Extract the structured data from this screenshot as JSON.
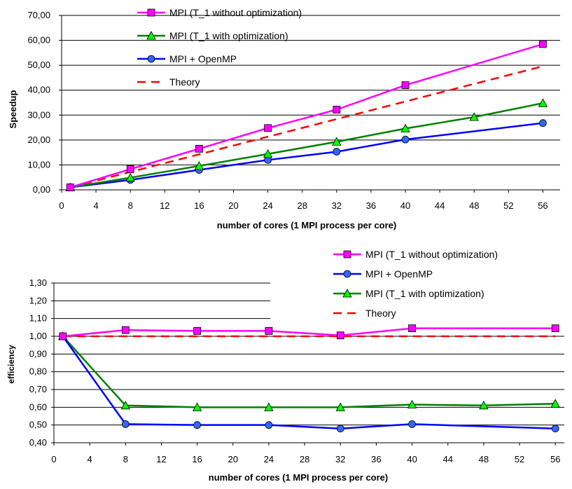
{
  "chart_data": [
    {
      "type": "line",
      "title": "",
      "xlabel": "number of cores (1 MPI process per core)",
      "ylabel": "Speedup",
      "xlim": [
        0,
        58
      ],
      "ylim": [
        0,
        70
      ],
      "x_ticks": [
        "0",
        "4",
        "8",
        "12",
        "16",
        "20",
        "24",
        "28",
        "32",
        "36",
        "40",
        "44",
        "48",
        "52",
        "56"
      ],
      "y_ticks": [
        "0,00",
        "10,00",
        "20,00",
        "30,00",
        "40,00",
        "50,00",
        "60,00",
        "70,00"
      ],
      "grid": true,
      "legend_position": "top-center",
      "series": [
        {
          "name": "MPI (T_1 without optimization)",
          "color": "#ff00ff",
          "marker": "square",
          "x": [
            1,
            8,
            16,
            24,
            32,
            40,
            56
          ],
          "y": [
            1.0,
            8.3,
            16.5,
            24.8,
            32.2,
            42.0,
            58.5
          ]
        },
        {
          "name": "MPI (T_1 with optimization)",
          "color": "#008000",
          "marker": "triangle",
          "x": [
            1,
            8,
            16,
            24,
            32,
            40,
            48,
            56
          ],
          "y": [
            1.0,
            4.9,
            9.6,
            14.4,
            19.3,
            24.6,
            29.2,
            34.8
          ]
        },
        {
          "name": "MPI + OpenMP",
          "color": "#0000ff",
          "marker": "circle",
          "x": [
            1,
            8,
            16,
            24,
            32,
            40,
            56
          ],
          "y": [
            1.0,
            4.0,
            8.0,
            12.0,
            15.3,
            20.2,
            26.8
          ]
        },
        {
          "name": "Theory",
          "color": "#ff0000",
          "marker": "none",
          "dashed": true,
          "x": [
            1,
            56
          ],
          "y": [
            1.0,
            49.6
          ]
        }
      ]
    },
    {
      "type": "line",
      "title": "",
      "xlabel": "number of cores (1 MPI process per core)",
      "ylabel": "efficiency",
      "xlim": [
        0,
        57
      ],
      "ylim": [
        0.4,
        1.3
      ],
      "x_ticks": [
        "0",
        "4",
        "8",
        "12",
        "16",
        "20",
        "24",
        "28",
        "32",
        "36",
        "40",
        "44",
        "48",
        "52",
        "56"
      ],
      "y_ticks": [
        "0,40",
        "0,50",
        "0,60",
        "0,70",
        "0,80",
        "0,90",
        "1,00",
        "1,10",
        "1,20",
        "1,30"
      ],
      "grid": true,
      "legend_position": "top-right",
      "series": [
        {
          "name": "MPI (T_1 without optimization)",
          "color": "#ff00ff",
          "marker": "square",
          "x": [
            1,
            8,
            16,
            24,
            32,
            40,
            56
          ],
          "y": [
            1.0,
            1.035,
            1.03,
            1.03,
            1.005,
            1.045,
            1.045
          ]
        },
        {
          "name": "MPI + OpenMP",
          "color": "#0000ff",
          "marker": "circle",
          "x": [
            1,
            8,
            16,
            24,
            32,
            40,
            56
          ],
          "y": [
            1.0,
            0.505,
            0.5,
            0.5,
            0.48,
            0.505,
            0.48
          ]
        },
        {
          "name": "MPI (T_1 with optimization)",
          "color": "#008000",
          "marker": "triangle",
          "x": [
            1,
            8,
            16,
            24,
            32,
            40,
            48,
            56
          ],
          "y": [
            1.0,
            0.61,
            0.6,
            0.6,
            0.6,
            0.615,
            0.61,
            0.62
          ]
        },
        {
          "name": "Theory",
          "color": "#ff0000",
          "marker": "none",
          "dashed": true,
          "x": [
            1,
            56
          ],
          "y": [
            1.0,
            1.0
          ]
        }
      ]
    }
  ]
}
